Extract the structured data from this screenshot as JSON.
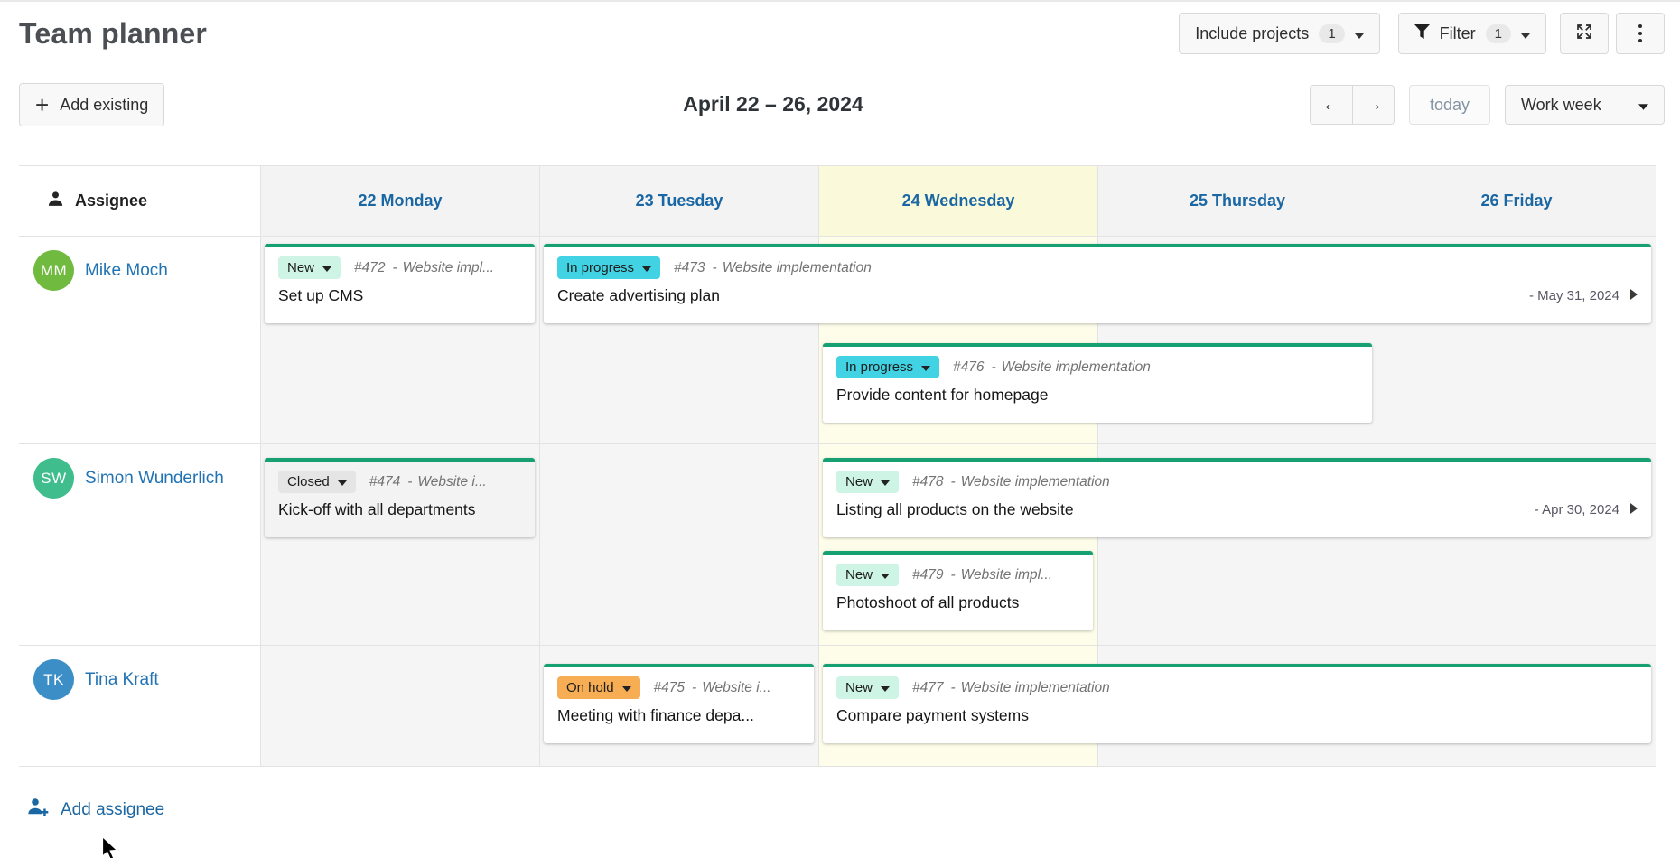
{
  "header": {
    "title": "Team planner",
    "include_projects_label": "Include projects",
    "include_projects_count": "1",
    "filter_label": "Filter",
    "filter_count": "1"
  },
  "toolbar": {
    "add_existing_label": "Add existing",
    "date_range": "April 22 – 26, 2024",
    "today_label": "today",
    "view_mode": "Work week"
  },
  "planner": {
    "assignee_header": "Assignee",
    "ref_separator": "-",
    "accent_color": "#17a172",
    "days": [
      {
        "label": "22 Monday",
        "today": false
      },
      {
        "label": "23 Tuesday",
        "today": false
      },
      {
        "label": "24 Wednesday",
        "today": true
      },
      {
        "label": "25 Thursday",
        "today": false
      },
      {
        "label": "26 Friday",
        "today": false
      }
    ],
    "statuses": {
      "new": {
        "label": "New",
        "color": "#cdf4e4"
      },
      "in_progress": {
        "label": "In progress",
        "color": "#41d3e3"
      },
      "closed": {
        "label": "Closed",
        "color": "#e5e5e5"
      },
      "on_hold": {
        "label": "On hold",
        "color": "#f6ad54"
      }
    },
    "rows": [
      {
        "assignee": {
          "initials": "MM",
          "name": "Mike Moch",
          "color": "#71ba40"
        },
        "cards": [
          {
            "status": "new",
            "ref": "#472",
            "project": "Website impl...",
            "title": "Set up CMS",
            "start": 0,
            "span": 1,
            "line": 0
          },
          {
            "status": "in_progress",
            "ref": "#473",
            "project": "Website implementation",
            "title": "Create advertising plan",
            "end_date": "- May 31, 2024",
            "continues": true,
            "start": 1,
            "span": 4,
            "line": 0
          },
          {
            "status": "in_progress",
            "ref": "#476",
            "project": "Website implementation",
            "title": "Provide content for homepage",
            "start": 2,
            "span": 2,
            "line": 1
          }
        ]
      },
      {
        "assignee": {
          "initials": "SW",
          "name": "Simon Wunderlich",
          "color": "#3fbd8c"
        },
        "cards": [
          {
            "status": "closed",
            "ref": "#474",
            "project": "Website i...",
            "title": "Kick-off with all departments",
            "start": 0,
            "span": 1,
            "line": 0
          },
          {
            "status": "new",
            "ref": "#478",
            "project": "Website implementation",
            "title": "Listing all products on the website",
            "end_date": "- Apr 30, 2024",
            "continues": true,
            "start": 2,
            "span": 3,
            "line": 0
          },
          {
            "status": "new",
            "ref": "#479",
            "project": "Website impl...",
            "title": "Photoshoot of all products",
            "start": 2,
            "span": 1,
            "line": 1
          }
        ]
      },
      {
        "assignee": {
          "initials": "TK",
          "name": "Tina Kraft",
          "color": "#3b8fc6"
        },
        "cards": [
          {
            "status": "on_hold",
            "ref": "#475",
            "project": "Website i...",
            "title": "Meeting with finance depa...",
            "start": 1,
            "span": 1,
            "line": 0
          },
          {
            "status": "new",
            "ref": "#477",
            "project": "Website implementation",
            "title": "Compare payment systems",
            "start": 2,
            "span": 3,
            "line": 0
          }
        ]
      }
    ],
    "add_assignee_label": "Add assignee"
  }
}
